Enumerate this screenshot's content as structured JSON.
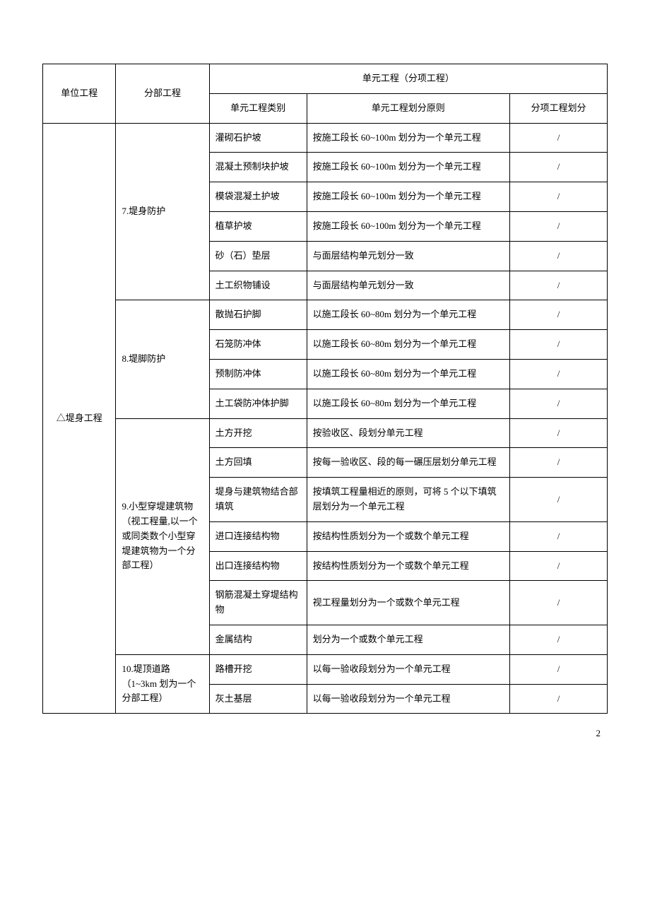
{
  "headers": {
    "unit_project": "单位工程",
    "section_project": "分部工程",
    "element_project_group": "单元工程（分项工程）",
    "element_type": "单元工程类别",
    "element_principle": "单元工程划分原则",
    "item_division": "分项工程划分"
  },
  "unit_project": "△堤身工程",
  "sections": {
    "s7": {
      "label": "7.堤身防护",
      "rows": [
        {
          "type": "灌砌石护坡",
          "principle": "按施工段长 60~100m 划分为一个单元工程",
          "division": "/"
        },
        {
          "type": "混凝土预制块护坡",
          "principle": "按施工段长 60~100m 划分为一个单元工程",
          "division": "/"
        },
        {
          "type": "模袋混凝土护坡",
          "principle": "按施工段长 60~100m 划分为一个单元工程",
          "division": "/"
        },
        {
          "type": "植草护坡",
          "principle": "按施工段长 60~100m 划分为一个单元工程",
          "division": "/"
        },
        {
          "type": "砂（石）垫层",
          "principle": "与面层结构单元划分一致",
          "division": "/"
        },
        {
          "type": "土工织物铺设",
          "principle": "与面层结构单元划分一致",
          "division": "/"
        }
      ]
    },
    "s8": {
      "label": "8.堤脚防护",
      "rows": [
        {
          "type": "散抛石护脚",
          "principle": "以施工段长 60~80m 划分为一个单元工程",
          "division": "/"
        },
        {
          "type": "石笼防冲体",
          "principle": "以施工段长 60~80m 划分为一个单元工程",
          "division": "/"
        },
        {
          "type": "预制防冲体",
          "principle": "以施工段长 60~80m 划分为一个单元工程",
          "division": "/"
        },
        {
          "type": "土工袋防冲体护脚",
          "principle": "以施工段长 60~80m 划分为一个单元工程",
          "division": "/"
        }
      ]
    },
    "s9": {
      "label": "9.小型穿堤建筑物\n（视工程量,以一个或同类数个小型穿堤建筑物为一个分部工程）",
      "rows": [
        {
          "type": "土方开挖",
          "principle": "按验收区、段划分单元工程",
          "division": "/"
        },
        {
          "type": "土方回填",
          "principle": "按每一验收区、段的每一碾压层划分单元工程",
          "division": "/"
        },
        {
          "type": "堤身与建筑物结合部填筑",
          "principle": "按填筑工程量相近的原则，可将 5 个以下填筑层划分为一个单元工程",
          "division": "/"
        },
        {
          "type": "进口连接结构物",
          "principle": "按结构性质划分为一个或数个单元工程",
          "division": "/"
        },
        {
          "type": "出口连接结构物",
          "principle": "按结构性质划分为一个或数个单元工程",
          "division": "/"
        },
        {
          "type": "钢筋混凝土穿堤结构物",
          "principle": "视工程量划分为一个或数个单元工程",
          "division": "/"
        },
        {
          "type": "金属结构",
          "principle": "划分为一个或数个单元工程",
          "division": "/"
        }
      ]
    },
    "s10": {
      "label": "10.堤顶道路\n（1~3km 划为一个分部工程）",
      "rows": [
        {
          "type": "路槽开挖",
          "principle": "以每一验收段划分为一个单元工程",
          "division": "/"
        },
        {
          "type": "灰土基层",
          "principle": "以每一验收段划分为一个单元工程",
          "division": "/"
        }
      ]
    }
  },
  "page_number": "2"
}
